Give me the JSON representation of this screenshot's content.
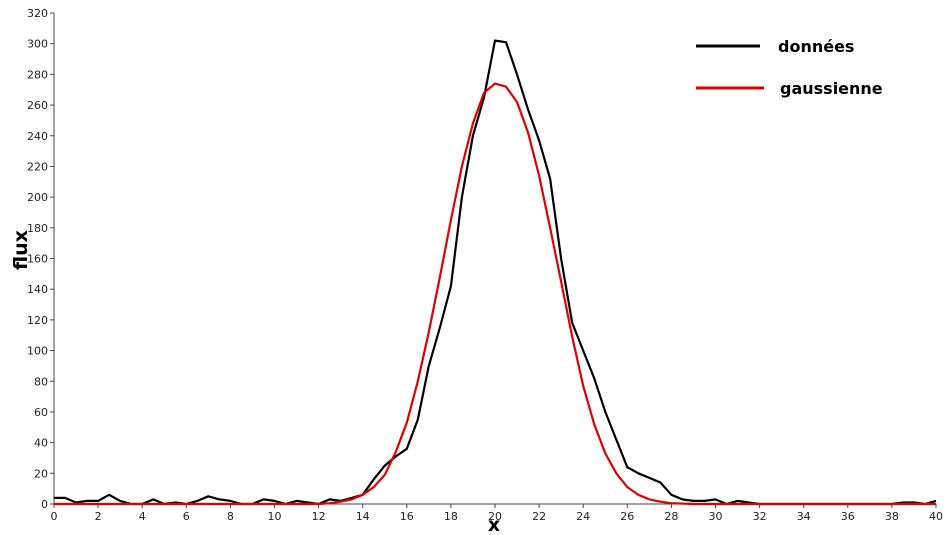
{
  "chart_data": {
    "type": "line",
    "title": "",
    "xlabel": "x",
    "ylabel": "flux",
    "xlim": [
      0,
      40
    ],
    "ylim": [
      0,
      320
    ],
    "xticks": [
      0,
      2,
      4,
      6,
      8,
      10,
      12,
      14,
      16,
      18,
      20,
      22,
      24,
      26,
      28,
      30,
      32,
      34,
      36,
      38,
      40
    ],
    "yticks": [
      0,
      20,
      40,
      60,
      80,
      100,
      120,
      140,
      160,
      180,
      200,
      220,
      240,
      260,
      280,
      300,
      320
    ],
    "grid": false,
    "legend_position": "top-right",
    "series": [
      {
        "name": "données",
        "color": "#000000",
        "points": [
          [
            0,
            4
          ],
          [
            0.5,
            4
          ],
          [
            1,
            1
          ],
          [
            1.5,
            2
          ],
          [
            2,
            2
          ],
          [
            2.5,
            6
          ],
          [
            3,
            2
          ],
          [
            3.5,
            0
          ],
          [
            4,
            0
          ],
          [
            4.5,
            3
          ],
          [
            5,
            0
          ],
          [
            5.5,
            1
          ],
          [
            6,
            0
          ],
          [
            6.5,
            2
          ],
          [
            7,
            5
          ],
          [
            7.5,
            3
          ],
          [
            8,
            2
          ],
          [
            8.5,
            0
          ],
          [
            9,
            0
          ],
          [
            9.5,
            3
          ],
          [
            10,
            2
          ],
          [
            10.5,
            0
          ],
          [
            11,
            2
          ],
          [
            11.5,
            1
          ],
          [
            12,
            0
          ],
          [
            12.5,
            3
          ],
          [
            13,
            2
          ],
          [
            13.5,
            4
          ],
          [
            14,
            6
          ],
          [
            14.5,
            16
          ],
          [
            15,
            25
          ],
          [
            15.5,
            31
          ],
          [
            16,
            36
          ],
          [
            16.5,
            55
          ],
          [
            17,
            90
          ],
          [
            17.5,
            115
          ],
          [
            18,
            142
          ],
          [
            18.5,
            200
          ],
          [
            19,
            240
          ],
          [
            19.5,
            265
          ],
          [
            20,
            302
          ],
          [
            20.5,
            301
          ],
          [
            21,
            280
          ],
          [
            21.5,
            257
          ],
          [
            22,
            237
          ],
          [
            22.5,
            212
          ],
          [
            23,
            160
          ],
          [
            23.5,
            118
          ],
          [
            24,
            100
          ],
          [
            24.5,
            82
          ],
          [
            25,
            60
          ],
          [
            25.5,
            42
          ],
          [
            26,
            24
          ],
          [
            26.5,
            20
          ],
          [
            27,
            17
          ],
          [
            27.5,
            14
          ],
          [
            28,
            6
          ],
          [
            28.5,
            3
          ],
          [
            29,
            2
          ],
          [
            29.5,
            2
          ],
          [
            30,
            3
          ],
          [
            30.5,
            0
          ],
          [
            31,
            2
          ],
          [
            31.5,
            1
          ],
          [
            32,
            0
          ],
          [
            32.5,
            0
          ],
          [
            33,
            0
          ],
          [
            33.5,
            0
          ],
          [
            34,
            0
          ],
          [
            34.5,
            0
          ],
          [
            35,
            0
          ],
          [
            35.5,
            0
          ],
          [
            36,
            0
          ],
          [
            36.5,
            0
          ],
          [
            37,
            0
          ],
          [
            37.5,
            0
          ],
          [
            38,
            0
          ],
          [
            38.5,
            1
          ],
          [
            39,
            1
          ],
          [
            39.5,
            0
          ],
          [
            40,
            2
          ]
        ]
      },
      {
        "name": "gaussienne",
        "color": "#e00000",
        "points": [
          [
            0,
            0
          ],
          [
            1,
            0
          ],
          [
            2,
            0
          ],
          [
            3,
            0
          ],
          [
            4,
            0
          ],
          [
            5,
            0
          ],
          [
            6,
            0
          ],
          [
            7,
            0
          ],
          [
            8,
            0
          ],
          [
            9,
            0
          ],
          [
            10,
            0
          ],
          [
            11,
            0
          ],
          [
            12,
            0
          ],
          [
            12.5,
            0.5
          ],
          [
            13,
            1.5
          ],
          [
            13.5,
            3
          ],
          [
            14,
            6
          ],
          [
            14.5,
            11
          ],
          [
            15,
            19
          ],
          [
            15.5,
            34
          ],
          [
            16,
            53
          ],
          [
            16.5,
            80
          ],
          [
            17,
            112
          ],
          [
            17.5,
            148
          ],
          [
            18,
            185
          ],
          [
            18.5,
            220
          ],
          [
            19,
            248
          ],
          [
            19.5,
            268
          ],
          [
            20,
            274
          ],
          [
            20.5,
            272
          ],
          [
            21,
            262
          ],
          [
            21.5,
            242
          ],
          [
            22,
            214
          ],
          [
            22.5,
            180
          ],
          [
            23,
            145
          ],
          [
            23.5,
            109
          ],
          [
            24,
            77
          ],
          [
            24.5,
            52
          ],
          [
            25,
            33
          ],
          [
            25.5,
            20
          ],
          [
            26,
            11
          ],
          [
            26.5,
            6
          ],
          [
            27,
            3
          ],
          [
            27.5,
            1.5
          ],
          [
            28,
            0.5
          ],
          [
            29,
            0
          ],
          [
            30,
            0
          ],
          [
            31,
            0
          ],
          [
            32,
            0
          ],
          [
            33,
            0
          ],
          [
            34,
            0
          ],
          [
            35,
            0
          ],
          [
            36,
            0
          ],
          [
            37,
            0
          ],
          [
            38,
            0
          ],
          [
            39,
            0
          ],
          [
            40,
            0
          ]
        ]
      }
    ]
  }
}
